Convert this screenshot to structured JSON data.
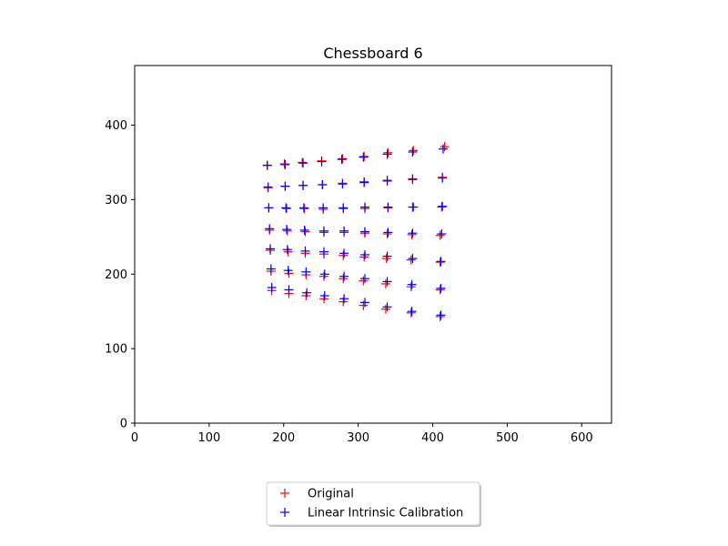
{
  "chart_data": {
    "type": "scatter",
    "title": "Chessboard 6",
    "xlabel": "",
    "ylabel": "",
    "xlim": [
      0,
      640
    ],
    "ylim": [
      0,
      480
    ],
    "xticks": [
      0,
      100,
      200,
      300,
      400,
      500,
      600
    ],
    "yticks": [
      0,
      100,
      200,
      300,
      400
    ],
    "grid": false,
    "legend": {
      "placement": "below-center"
    },
    "colors": {
      "original": "#ff0000",
      "linear": "#0000ff"
    },
    "series": [
      {
        "name": "Original",
        "marker": "+",
        "color": "#ff0000",
        "x": [
          178,
          201,
          225,
          251,
          279,
          308,
          340,
          374,
          416,
          179,
          202,
          226,
          252,
          279,
          308,
          339,
          373,
          413,
          180,
          204,
          228,
          253,
          280,
          309,
          340,
          373,
          412,
          181,
          205,
          229,
          254,
          281,
          309,
          339,
          372,
          410,
          182,
          206,
          229,
          254,
          280,
          308,
          338,
          371,
          410,
          183,
          207,
          230,
          254,
          280,
          307,
          337,
          371,
          410,
          184,
          207,
          230,
          254,
          280,
          307,
          337,
          371,
          410
        ],
        "y": [
          346,
          348,
          350,
          352,
          355,
          358,
          363,
          366,
          371,
          316,
          318,
          319,
          320,
          322,
          324,
          326,
          328,
          330,
          289,
          288,
          288,
          287,
          288,
          288,
          289,
          290,
          290,
          259,
          258,
          257,
          256,
          256,
          255,
          254,
          253,
          252,
          232,
          230,
          228,
          227,
          225,
          223,
          221,
          219,
          216,
          204,
          201,
          199,
          197,
          194,
          191,
          187,
          183,
          179,
          178,
          174,
          171,
          167,
          163,
          158,
          153,
          148,
          143
        ]
      },
      {
        "name": "Linear Intrinsic Calibration",
        "marker": "+",
        "color": "#0000ff",
        "x": [
          178,
          202,
          226,
          251,
          278,
          307,
          339,
          373,
          414,
          179,
          202,
          226,
          252,
          279,
          308,
          339,
          373,
          413,
          180,
          203,
          227,
          253,
          280,
          309,
          340,
          374,
          413,
          181,
          204,
          228,
          254,
          281,
          309,
          340,
          373,
          412,
          182,
          205,
          229,
          254,
          281,
          309,
          339,
          373,
          411,
          183,
          206,
          230,
          255,
          281,
          309,
          339,
          372,
          411,
          184,
          207,
          231,
          255,
          281,
          309,
          339,
          372,
          411
        ],
        "y": [
          346,
          347,
          349,
          351,
          354,
          357,
          361,
          364,
          368,
          317,
          318,
          319,
          320,
          321,
          323,
          325,
          327,
          329,
          289,
          289,
          289,
          289,
          289,
          290,
          290,
          290,
          291,
          261,
          260,
          259,
          258,
          258,
          257,
          256,
          255,
          254,
          234,
          233,
          231,
          230,
          228,
          226,
          224,
          221,
          217,
          207,
          205,
          203,
          200,
          197,
          194,
          190,
          186,
          181,
          182,
          179,
          175,
          171,
          167,
          162,
          156,
          150,
          145
        ]
      }
    ]
  }
}
